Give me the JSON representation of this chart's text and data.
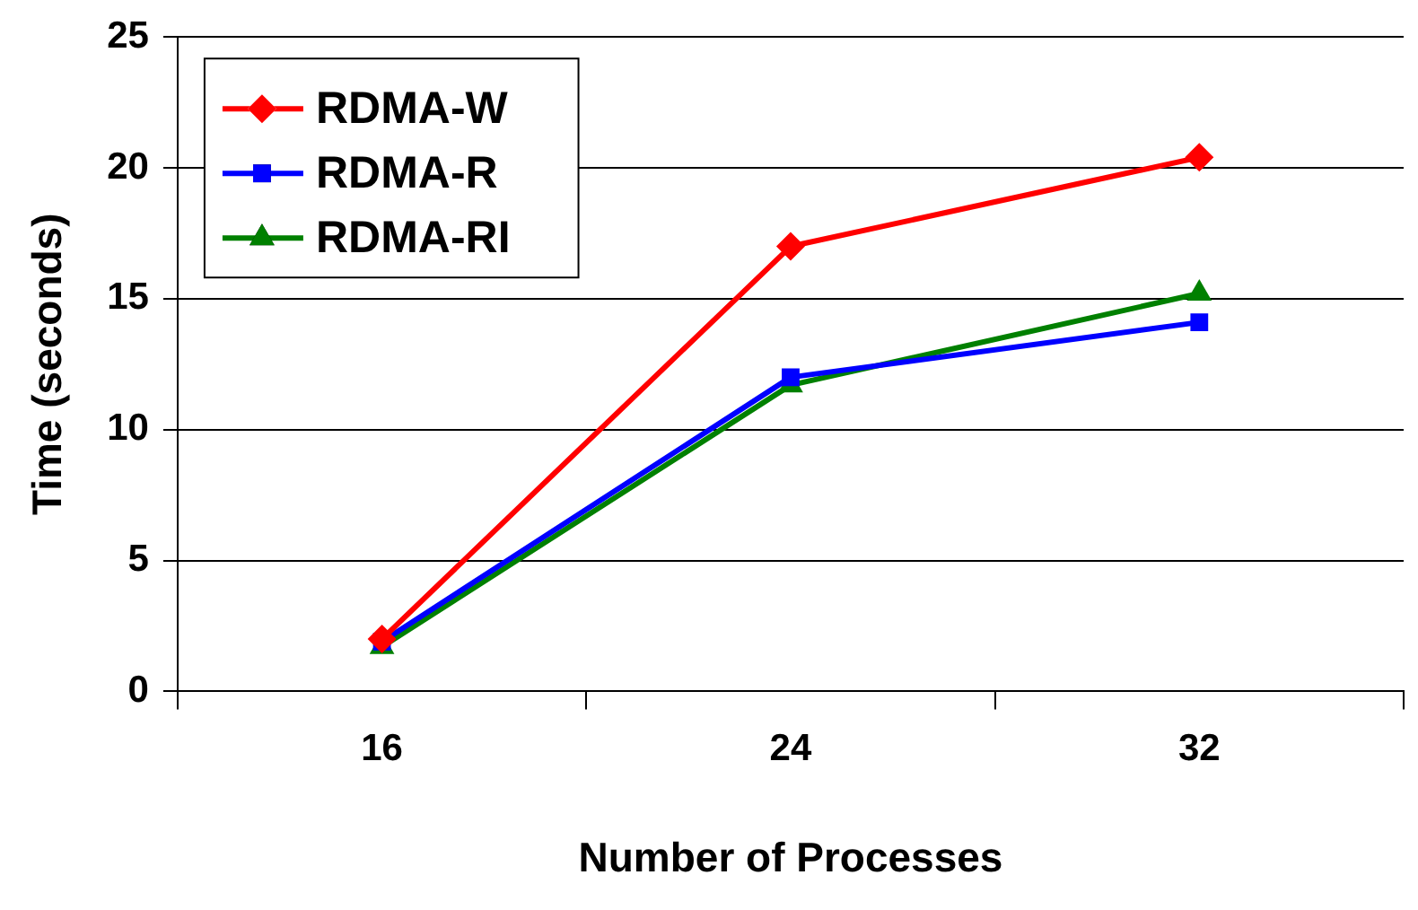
{
  "chart_data": {
    "type": "line",
    "xlabel": "Number of Processes",
    "ylabel": "Time (seconds)",
    "categories": [
      "16",
      "24",
      "32"
    ],
    "series": [
      {
        "name": "RDMA-W",
        "color": "#ff0000",
        "marker": "diamond",
        "values": [
          2.0,
          17.0,
          20.4
        ]
      },
      {
        "name": "RDMA-R",
        "color": "#0000ff",
        "marker": "square",
        "values": [
          1.9,
          12.0,
          14.1
        ]
      },
      {
        "name": "RDMA-RI",
        "color": "#008000",
        "marker": "triangle",
        "values": [
          1.7,
          11.7,
          15.2
        ]
      }
    ],
    "ylim": [
      0,
      25
    ],
    "yticks": [
      0,
      5,
      10,
      15,
      20,
      25
    ],
    "grid": "y",
    "legend": "top left",
    "line_style": "solid"
  }
}
